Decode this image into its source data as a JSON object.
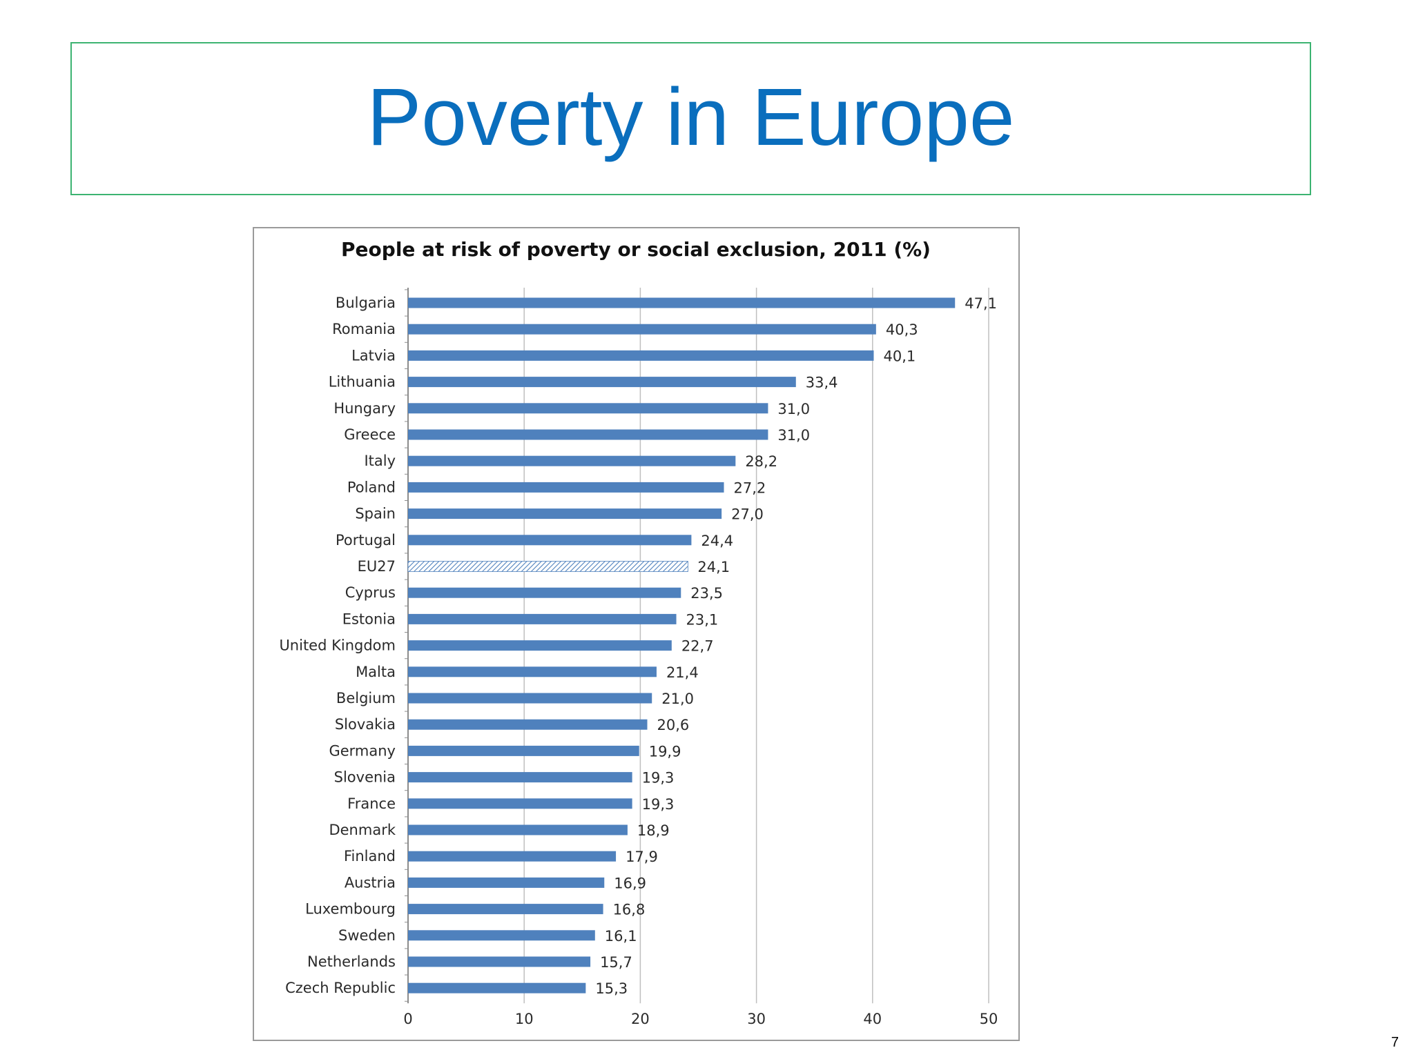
{
  "slide": {
    "title": "Poverty in Europe",
    "page_number": "7"
  },
  "colors": {
    "title": "#0a6ebd",
    "title_border": "#3cb371",
    "bar": "#4f81bd",
    "highlight_bar_pattern": "hatched",
    "grid": "#bfbfbf"
  },
  "chart_data": {
    "type": "bar",
    "orientation": "horizontal",
    "title": "People at risk of poverty or social exclusion, 2011 (%)",
    "xlabel": "",
    "ylabel": "",
    "xlim": [
      0,
      50
    ],
    "ticks": [
      0,
      10,
      20,
      30,
      40,
      50
    ],
    "grid": true,
    "legend": "none",
    "categories": [
      "Bulgaria",
      "Romania",
      "Latvia",
      "Lithuania",
      "Hungary",
      "Greece",
      "Italy",
      "Poland",
      "Spain",
      "Portugal",
      "EU27",
      "Cyprus",
      "Estonia",
      "United Kingdom",
      "Malta",
      "Belgium",
      "Slovakia",
      "Germany",
      "Slovenia",
      "France",
      "Denmark",
      "Finland",
      "Austria",
      "Luxembourg",
      "Sweden",
      "Netherlands",
      "Czech Republic"
    ],
    "values": [
      47.1,
      40.3,
      40.1,
      33.4,
      31.0,
      31.0,
      28.2,
      27.2,
      27.0,
      24.4,
      24.1,
      23.5,
      23.1,
      22.7,
      21.4,
      21.0,
      20.6,
      19.9,
      19.3,
      19.3,
      18.9,
      17.9,
      16.9,
      16.8,
      16.1,
      15.7,
      15.3
    ],
    "value_labels": [
      "47,1",
      "40,3",
      "40,1",
      "33,4",
      "31,0",
      "31,0",
      "28,2",
      "27,2",
      "27,0",
      "24,4",
      "24,1",
      "23,5",
      "23,1",
      "22,7",
      "21,4",
      "21,0",
      "20,6",
      "19,9",
      "19,3",
      "19,3",
      "18,9",
      "17,9",
      "16,9",
      "16,8",
      "16,1",
      "15,7",
      "15,3"
    ],
    "highlighted_category": "EU27"
  }
}
